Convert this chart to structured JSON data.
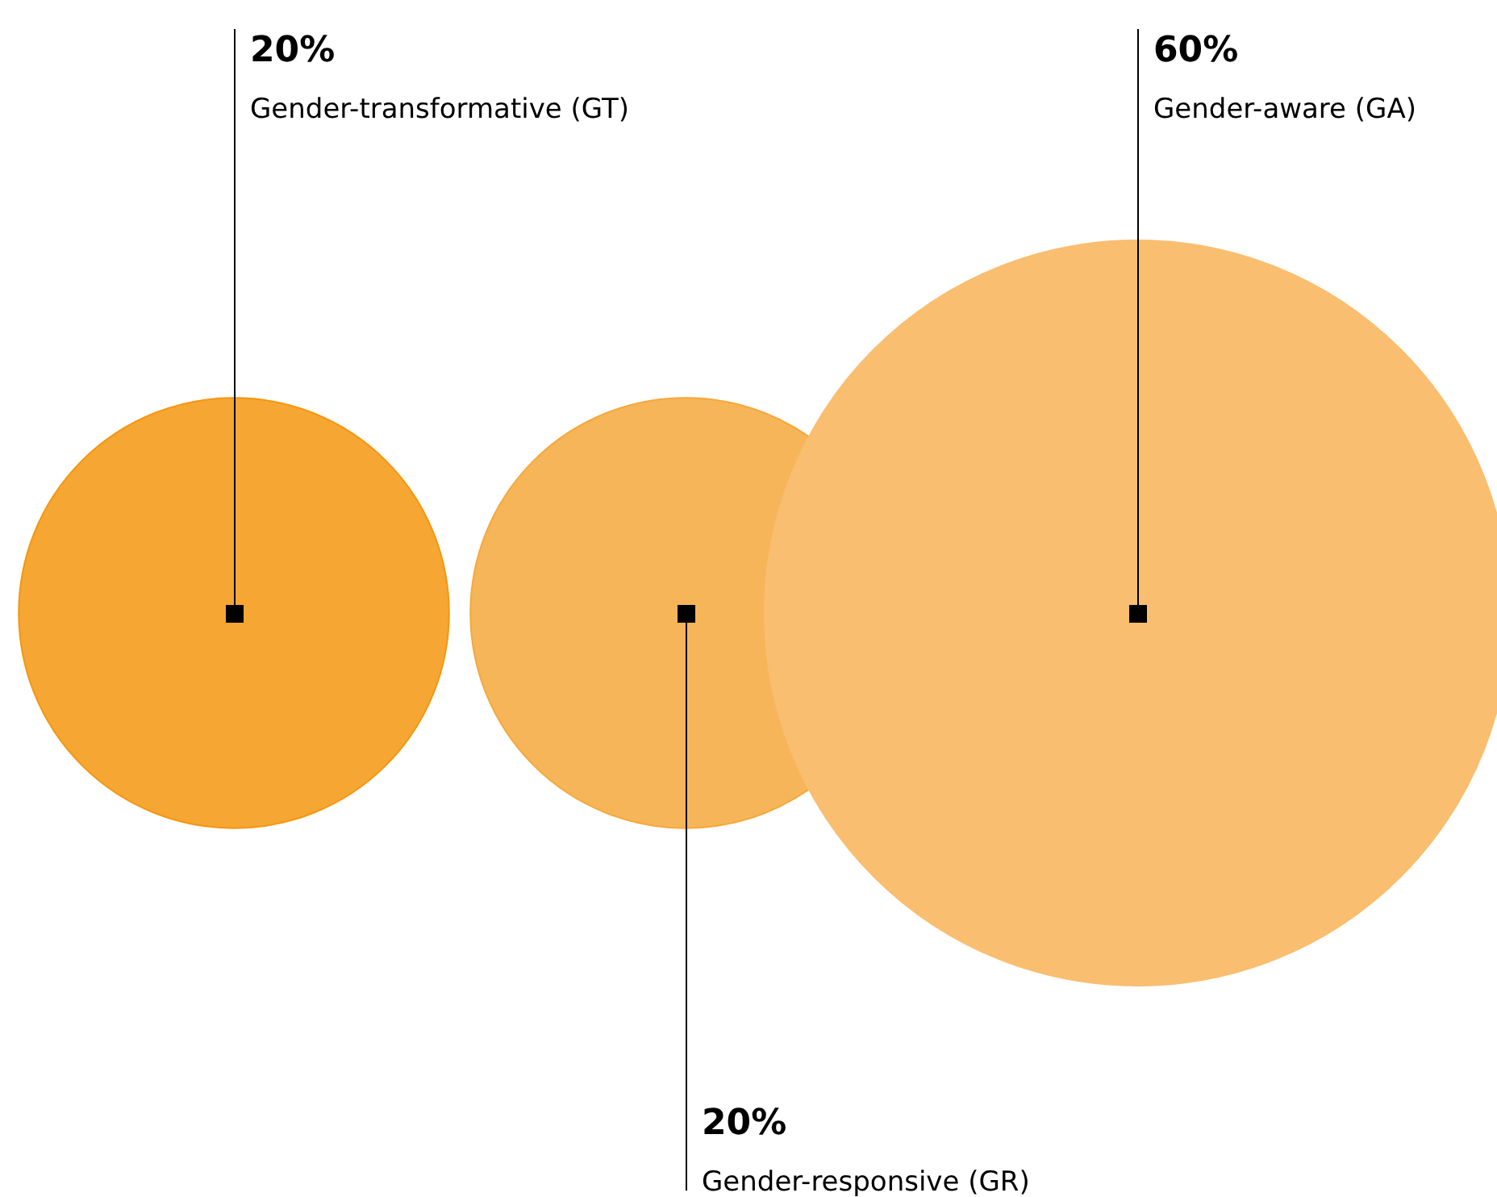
{
  "chart_data": {
    "type": "other",
    "legend": false,
    "categories": [
      "Gender-transformative (GT)",
      "Gender-responsive (GR)",
      "Gender-aware (GA)"
    ],
    "values": [
      20,
      20,
      60
    ],
    "value_labels": [
      "20%",
      "20%",
      "60%"
    ],
    "colors": [
      "#f5960f",
      "#f5a83b",
      "#f9be6f"
    ]
  }
}
